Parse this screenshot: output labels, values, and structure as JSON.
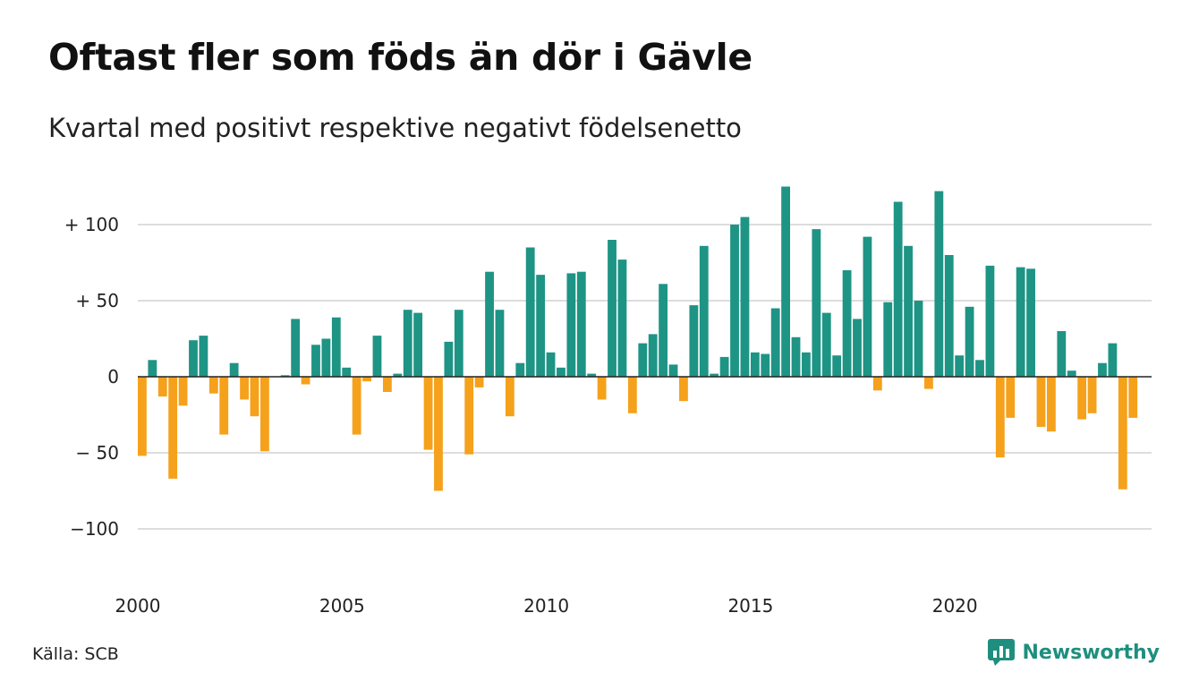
{
  "title": "Oftast fler som föds än dör i Gävle",
  "subtitle": "Kvartal med positivt respektive negativt födelsenetto",
  "source": "Källa: SCB",
  "brand": {
    "name": "Newsworthy",
    "color": "#1e8f7e",
    "icon": "bar-chart-logo-icon"
  },
  "colors": {
    "positive": "#1e9485",
    "negative": "#f5a11c"
  },
  "chart_data": {
    "type": "bar",
    "title": "Oftast fler som föds än dör i Gävle",
    "subtitle": "Kvartal med positivt respektive negativt födelsenetto",
    "xlabel": "",
    "ylabel": "",
    "ylim": [
      -125,
      125
    ],
    "grid": true,
    "x_range": [
      2000,
      2024.75
    ],
    "x_ticks": [
      {
        "value": 2000,
        "label": "2000"
      },
      {
        "value": 2005,
        "label": "2005"
      },
      {
        "value": 2010,
        "label": "2010"
      },
      {
        "value": 2015,
        "label": "2015"
      },
      {
        "value": 2020,
        "label": "2020"
      }
    ],
    "y_ticks": [
      {
        "value": 100,
        "label": "+ 100"
      },
      {
        "value": 50,
        "label": "+  50"
      },
      {
        "value": 0,
        "label": "0"
      },
      {
        "value": -50,
        "label": "− 50"
      },
      {
        "value": -100,
        "label": "−100"
      }
    ],
    "categories": [
      "2000 K1",
      "2000 K2",
      "2000 K3",
      "2000 K4",
      "2001 K1",
      "2001 K2",
      "2001 K3",
      "2001 K4",
      "2002 K1",
      "2002 K2",
      "2002 K3",
      "2002 K4",
      "2003 K1",
      "2003 K2",
      "2003 K3",
      "2003 K4",
      "2004 K1",
      "2004 K2",
      "2004 K3",
      "2004 K4",
      "2005 K1",
      "2005 K2",
      "2005 K3",
      "2005 K4",
      "2006 K1",
      "2006 K2",
      "2006 K3",
      "2006 K4",
      "2007 K1",
      "2007 K2",
      "2007 K3",
      "2007 K4",
      "2008 K1",
      "2008 K2",
      "2008 K3",
      "2008 K4",
      "2009 K1",
      "2009 K2",
      "2009 K3",
      "2009 K4",
      "2010 K1",
      "2010 K2",
      "2010 K3",
      "2010 K4",
      "2011 K1",
      "2011 K2",
      "2011 K3",
      "2011 K4",
      "2012 K1",
      "2012 K2",
      "2012 K3",
      "2012 K4",
      "2013 K1",
      "2013 K2",
      "2013 K3",
      "2013 K4",
      "2014 K1",
      "2014 K2",
      "2014 K3",
      "2014 K4",
      "2015 K1",
      "2015 K2",
      "2015 K3",
      "2015 K4",
      "2016 K1",
      "2016 K2",
      "2016 K3",
      "2016 K4",
      "2017 K1",
      "2017 K2",
      "2017 K3",
      "2017 K4",
      "2018 K1",
      "2018 K2",
      "2018 K3",
      "2018 K4",
      "2019 K1",
      "2019 K2",
      "2019 K3",
      "2019 K4",
      "2020 K1",
      "2020 K2",
      "2020 K3",
      "2020 K4",
      "2021 K1",
      "2021 K2",
      "2021 K3",
      "2021 K4",
      "2022 K1",
      "2022 K2",
      "2022 K3",
      "2022 K4",
      "2023 K1",
      "2023 K2",
      "2023 K3",
      "2023 K4",
      "2024 K1",
      "2024 K2",
      "2024 K3"
    ],
    "values": [
      -52,
      11,
      -13,
      -67,
      -19,
      24,
      27,
      -11,
      -38,
      9,
      -15,
      -26,
      -49,
      0,
      1,
      38,
      -5,
      21,
      25,
      39,
      6,
      -38,
      -3,
      27,
      -10,
      2,
      44,
      42,
      -48,
      -75,
      23,
      44,
      -51,
      -7,
      69,
      44,
      -26,
      9,
      85,
      67,
      16,
      6,
      68,
      69,
      2,
      -15,
      90,
      77,
      -24,
      22,
      28,
      61,
      8,
      -16,
      47,
      86,
      2,
      13,
      100,
      105,
      16,
      15,
      45,
      125,
      26,
      16,
      97,
      42,
      14,
      70,
      38,
      92,
      -9,
      49,
      115,
      86,
      50,
      -8,
      122,
      80,
      14,
      46,
      11,
      73,
      -53,
      -27,
      72,
      71,
      -33,
      -36,
      30,
      4,
      -28,
      -24,
      9,
      22,
      -74,
      -27,
      0
    ]
  }
}
